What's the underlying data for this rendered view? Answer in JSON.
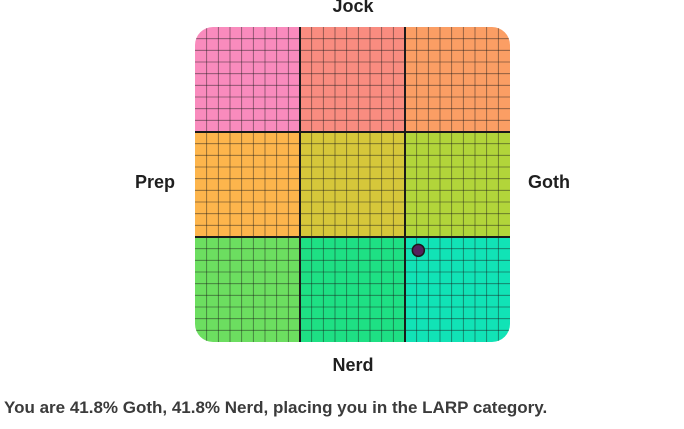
{
  "axes": {
    "top": "Jock",
    "bottom": "Nerd",
    "left": "Prep",
    "right": "Goth"
  },
  "grid": {
    "rows": 3,
    "cols": 3,
    "subdivisions": 9,
    "cell_colors": [
      [
        "#f98bbd",
        "#f98c80",
        "#fb9e64"
      ],
      [
        "#fdb54c",
        "#d6c73a",
        "#b2d53a"
      ],
      [
        "#6cde60",
        "#1ee084",
        "#11e3b6"
      ]
    ],
    "line_color": "#1a1a1a",
    "marker_color": "#55205c"
  },
  "result": {
    "goth_percent": 41.8,
    "nerd_percent": 41.8,
    "category": "LARP",
    "text": "You are 41.8% Goth, 41.8% Nerd, placing you in the LARP category."
  }
}
